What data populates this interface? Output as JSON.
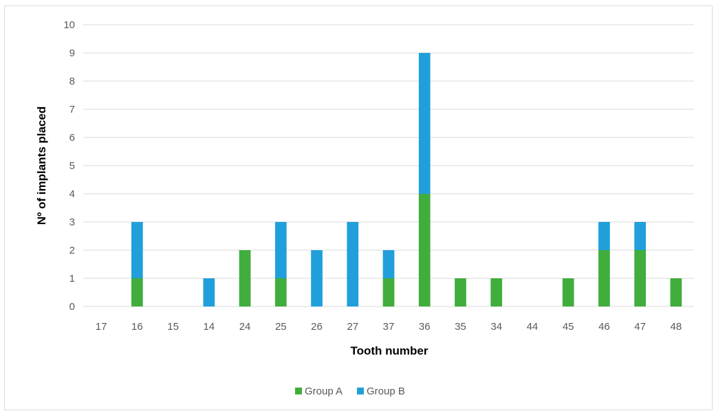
{
  "chart_data": {
    "type": "bar",
    "stacked": true,
    "title": "",
    "xlabel": "Tooth number",
    "ylabel": "Nº of implants placed",
    "ylim": [
      0,
      10
    ],
    "yticks": [
      0,
      1,
      2,
      3,
      4,
      5,
      6,
      7,
      8,
      9,
      10
    ],
    "grid": true,
    "legend_position": "bottom",
    "categories": [
      "17",
      "16",
      "15",
      "14",
      "24",
      "25",
      "26",
      "27",
      "37",
      "36",
      "35",
      "34",
      "44",
      "45",
      "46",
      "47",
      "48"
    ],
    "series": [
      {
        "name": "Group A",
        "color": "#41ad3d",
        "values": [
          0,
          1,
          0,
          0,
          2,
          1,
          0,
          0,
          1,
          4,
          1,
          1,
          0,
          1,
          2,
          2,
          1
        ]
      },
      {
        "name": "Group B",
        "color": "#219fdb",
        "values": [
          0,
          2,
          0,
          1,
          0,
          2,
          2,
          3,
          1,
          5,
          0,
          0,
          0,
          0,
          1,
          1,
          0
        ]
      }
    ]
  }
}
